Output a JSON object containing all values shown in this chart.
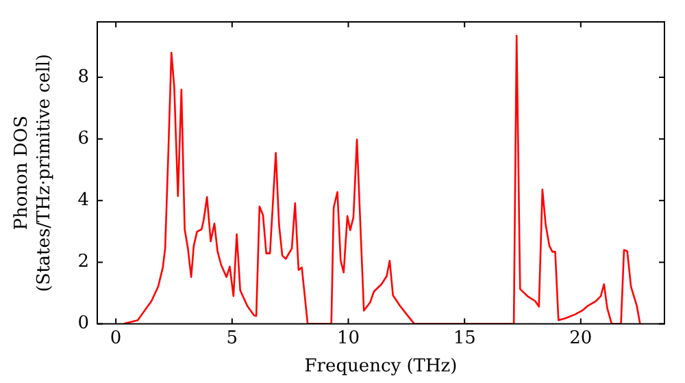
{
  "chart_data": {
    "type": "line",
    "xlabel": "Frequency (THz)",
    "ylabel": "Phonon DOS\n(States/THz·primitive cell)",
    "xlim": [
      -0.8,
      23.6
    ],
    "xticks": [
      0,
      5,
      10,
      15,
      20
    ],
    "ylim": [
      0,
      9.8
    ],
    "yticks": [
      0,
      2,
      4,
      6,
      8
    ],
    "legend": false,
    "marker": "none",
    "line_style": "solid",
    "series": [
      {
        "color": "#ff0000",
        "x": [
          0.35,
          0.94,
          1.53,
          1.82,
          2.02,
          2.12,
          2.25,
          2.39,
          2.51,
          2.67,
          2.82,
          2.96,
          3.1,
          3.24,
          3.35,
          3.49,
          3.69,
          3.78,
          3.92,
          4.08,
          4.24,
          4.37,
          4.53,
          4.76,
          4.9,
          5.06,
          5.2,
          5.35,
          5.65,
          5.94,
          6.04,
          6.18,
          6.33,
          6.47,
          6.63,
          6.88,
          7.02,
          7.16,
          7.31,
          7.57,
          7.71,
          7.86,
          8.0,
          8.25,
          9.27,
          9.37,
          9.53,
          9.67,
          9.8,
          9.96,
          10.08,
          10.22,
          10.37,
          10.51,
          10.67,
          10.94,
          11.1,
          11.43,
          11.65,
          11.78,
          11.92,
          12.22,
          12.51,
          12.84,
          17.12,
          17.24,
          17.39,
          17.71,
          18.04,
          18.2,
          18.35,
          18.49,
          18.65,
          18.78,
          18.9,
          19.04,
          19.37,
          19.76,
          20.06,
          20.31,
          20.65,
          20.86,
          21.0,
          21.14,
          21.33,
          21.73,
          21.86,
          22.0,
          22.16,
          22.41,
          22.55
        ],
        "values": [
          0.01,
          0.12,
          0.74,
          1.21,
          1.83,
          2.45,
          5.4,
          8.8,
          7.7,
          4.15,
          7.6,
          3.07,
          2.45,
          1.52,
          2.53,
          2.99,
          3.07,
          3.38,
          4.12,
          2.68,
          3.26,
          2.37,
          1.91,
          1.52,
          1.86,
          0.9,
          2.91,
          1.09,
          0.59,
          0.28,
          0.26,
          3.81,
          3.53,
          2.29,
          2.29,
          5.55,
          3.22,
          2.22,
          2.11,
          2.45,
          3.92,
          1.75,
          1.83,
          0,
          0,
          3.77,
          4.28,
          2.06,
          1.67,
          3.5,
          3.04,
          3.46,
          5.98,
          3.38,
          0.43,
          0.7,
          1.05,
          1.29,
          1.55,
          2.05,
          0.93,
          0.59,
          0.31,
          0,
          0,
          9.35,
          1.13,
          0.9,
          0.74,
          0.56,
          4.36,
          3.22,
          2.53,
          2.34,
          2.34,
          0.12,
          0.19,
          0.31,
          0.43,
          0.59,
          0.74,
          0.9,
          1.29,
          0.51,
          0,
          0,
          2.4,
          2.36,
          1.21,
          0.59,
          0
        ]
      }
    ]
  }
}
